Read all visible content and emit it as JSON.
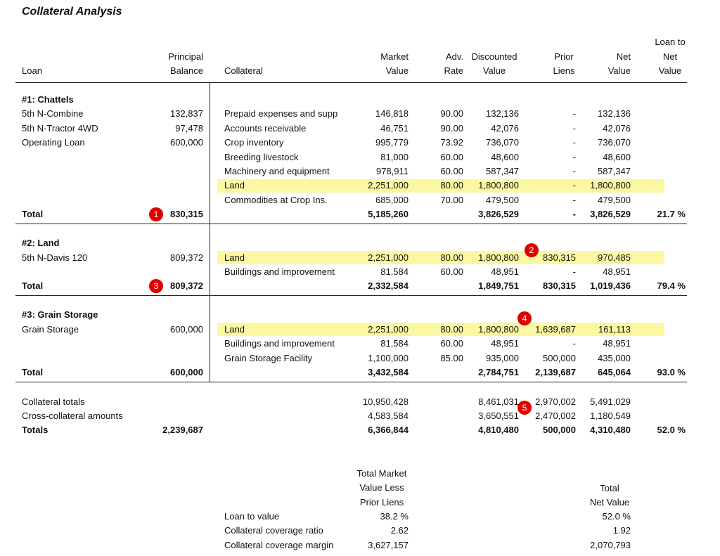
{
  "title": "Collateral Analysis",
  "header": [
    {
      "key": "label",
      "lines": [
        "Loan"
      ]
    },
    {
      "key": "balance",
      "lines": [
        "Principal",
        "Balance"
      ]
    },
    {
      "key": "collateral",
      "lines": [
        "Collateral"
      ]
    },
    {
      "key": "market",
      "lines": [
        "Market",
        "Value"
      ]
    },
    {
      "key": "rate",
      "lines": [
        "Adv.",
        "Rate"
      ]
    },
    {
      "key": "disc",
      "lines": [
        "Discounted",
        "Value"
      ]
    },
    {
      "key": "prior",
      "lines": [
        "Prior",
        "Liens"
      ]
    },
    {
      "key": "net",
      "lines": [
        "Net",
        "Value"
      ]
    },
    {
      "key": "ltv",
      "lines": [
        "Loan to",
        "Net",
        "Value"
      ]
    }
  ],
  "sections": [
    {
      "heading": "#1: Chattels",
      "loans": [
        {
          "label": "5th N-Combine",
          "balance": "132,837"
        },
        {
          "label": "5th N-Tractor 4WD",
          "balance": "97,478"
        },
        {
          "label": "Operating Loan",
          "balance": "600,000"
        }
      ],
      "collateral": [
        {
          "label": "Prepaid expenses and supp",
          "market": "146,818",
          "rate": "90.00",
          "disc": "132,136",
          "prior": "-",
          "net": "132,136"
        },
        {
          "label": "Accounts receivable",
          "market": "46,751",
          "rate": "90.00",
          "disc": "42,076",
          "prior": "-",
          "net": "42,076"
        },
        {
          "label": "Crop inventory",
          "market": "995,779",
          "rate": "73.92",
          "disc": "736,070",
          "prior": "-",
          "net": "736,070"
        },
        {
          "label": "Breeding livestock",
          "market": "81,000",
          "rate": "60.00",
          "disc": "48,600",
          "prior": "-",
          "net": "48,600"
        },
        {
          "label": "Machinery and equipment",
          "market": "978,911",
          "rate": "60.00",
          "disc": "587,347",
          "prior": "-",
          "net": "587,347"
        },
        {
          "label": "Land",
          "market": "2,251,000",
          "rate": "80.00",
          "disc": "1,800,800",
          "prior": "-",
          "net": "1,800,800",
          "highlight": true
        },
        {
          "label": "Commodities at Crop Ins.",
          "market": "685,000",
          "rate": "70.00",
          "disc": "479,500",
          "prior": "-",
          "net": "479,500"
        }
      ],
      "total": {
        "label": "Total",
        "balance": "830,315",
        "market": "5,185,260",
        "disc": "3,826,529",
        "prior": "-",
        "net": "3,826,529",
        "ltv": "21.7 %"
      }
    },
    {
      "heading": "#2: Land",
      "loans": [
        {
          "label": "5th N-Davis 120",
          "balance": "809,372"
        }
      ],
      "collateral": [
        {
          "label": "Land",
          "market": "2,251,000",
          "rate": "80.00",
          "disc": "1,800,800",
          "prior": "830,315",
          "net": "970,485",
          "highlight": true
        },
        {
          "label": "Buildings and improvement",
          "market": "81,584",
          "rate": "60.00",
          "disc": "48,951",
          "prior": "-",
          "net": "48,951"
        }
      ],
      "total": {
        "label": "Total",
        "balance": "809,372",
        "market": "2,332,584",
        "disc": "1,849,751",
        "prior": "830,315",
        "net": "1,019,436",
        "ltv": "79.4 %"
      }
    },
    {
      "heading": "#3: Grain Storage",
      "loans": [
        {
          "label": "Grain Storage",
          "balance": "600,000"
        }
      ],
      "collateral": [
        {
          "label": "Land",
          "market": "2,251,000",
          "rate": "80.00",
          "disc": "1,800,800",
          "prior": "1,639,687",
          "net": "161,113",
          "highlight": true
        },
        {
          "label": "Buildings and improvement",
          "market": "81,584",
          "rate": "60.00",
          "disc": "48,951",
          "prior": "-",
          "net": "48,951"
        },
        {
          "label": "Grain Storage Facility",
          "market": "1,100,000",
          "rate": "85.00",
          "disc": "935,000",
          "prior": "500,000",
          "net": "435,000"
        }
      ],
      "total": {
        "label": "Total",
        "balance": "600,000",
        "market": "3,432,584",
        "disc": "2,784,751",
        "prior": "2,139,687",
        "net": "645,064",
        "ltv": "93.0 %"
      }
    }
  ],
  "summary": [
    {
      "label": "Collateral totals",
      "market": "10,950,428",
      "disc": "8,461,031",
      "prior": "2,970,002",
      "net": "5,491,029"
    },
    {
      "label": "Cross-collateral amounts",
      "market": "4,583,584",
      "disc": "3,650,551",
      "prior": "2,470,002",
      "net": "1,180,549"
    },
    {
      "label": "Totals",
      "balance": "2,239,687",
      "market": "6,366,844",
      "disc": "4,810,480",
      "prior": "500,000",
      "net": "4,310,480",
      "ltv": "52.0 %",
      "bold": true
    }
  ],
  "coverage": {
    "headers": {
      "market": [
        "Total Market",
        "Value Less",
        "Prior Liens"
      ],
      "net": [
        "Total",
        "Net Value"
      ]
    },
    "rows": [
      {
        "label": "Loan to value",
        "market": "38.2 %",
        "net": "52.0 %"
      },
      {
        "label": "Collateral coverage ratio",
        "market": "2.62",
        "net": "1.92"
      },
      {
        "label": "Collateral coverage margin",
        "market": "3,627,157",
        "net": "2,070,793"
      }
    ]
  },
  "annotations": [
    "1",
    "2",
    "3",
    "4",
    "5"
  ]
}
